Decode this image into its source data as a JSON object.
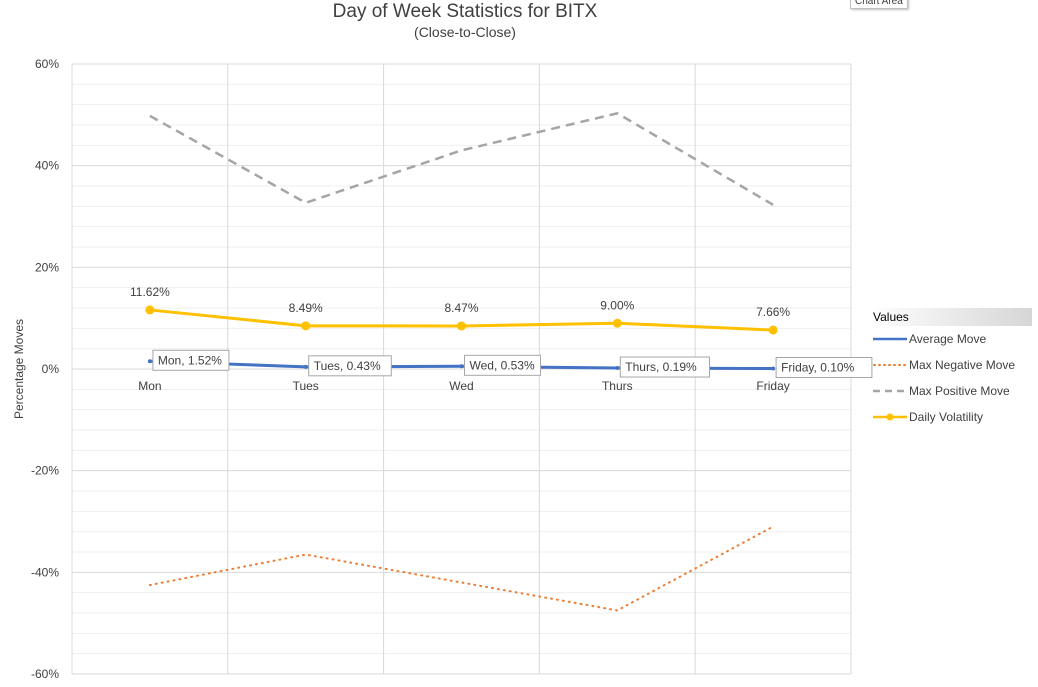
{
  "tooltip": "Chart Area",
  "chart_data": {
    "type": "line",
    "title": "Day of Week Statistics for BITX",
    "subtitle": "(Close-to-Close)",
    "xlabel": "",
    "ylabel": "Percentage Moves",
    "categories": [
      "Mon",
      "Tues",
      "Wed",
      "Thurs",
      "Friday"
    ],
    "ylim": [
      -60,
      60
    ],
    "yticks": [
      60,
      40,
      20,
      0,
      -20,
      -40,
      -60
    ],
    "ytick_labels": [
      "60%",
      "40%",
      "20%",
      "0%",
      "-20%",
      "-40%",
      "-60%"
    ],
    "grid": true,
    "legend": {
      "title": "Values",
      "position": "right"
    },
    "series": [
      {
        "name": "Average Move",
        "values": [
          1.52,
          0.43,
          0.53,
          0.19,
          0.1
        ],
        "labels": [
          "Mon, 1.52%",
          "Tues, 0.43%",
          "Wed, 0.53%",
          "Thurs, 0.19%",
          "Friday, 0.10%"
        ],
        "color": "#4472c4",
        "style": "solid"
      },
      {
        "name": "Max Negative Move",
        "values": [
          -42.5,
          -36.5,
          -42.0,
          -47.5,
          -31.0
        ],
        "color": "#ed7d31",
        "style": "dotted"
      },
      {
        "name": "Max Positive Move",
        "values": [
          49.8,
          32.7,
          43.0,
          50.3,
          32.3
        ],
        "color": "#a5a5a5",
        "style": "dashed"
      },
      {
        "name": "Daily Volatility",
        "values": [
          11.62,
          8.49,
          8.47,
          9.0,
          7.66
        ],
        "labels": [
          "11.62%",
          "8.49%",
          "8.47%",
          "9.00%",
          "7.66%"
        ],
        "color": "#ffc000",
        "style": "solid-markers"
      }
    ]
  }
}
